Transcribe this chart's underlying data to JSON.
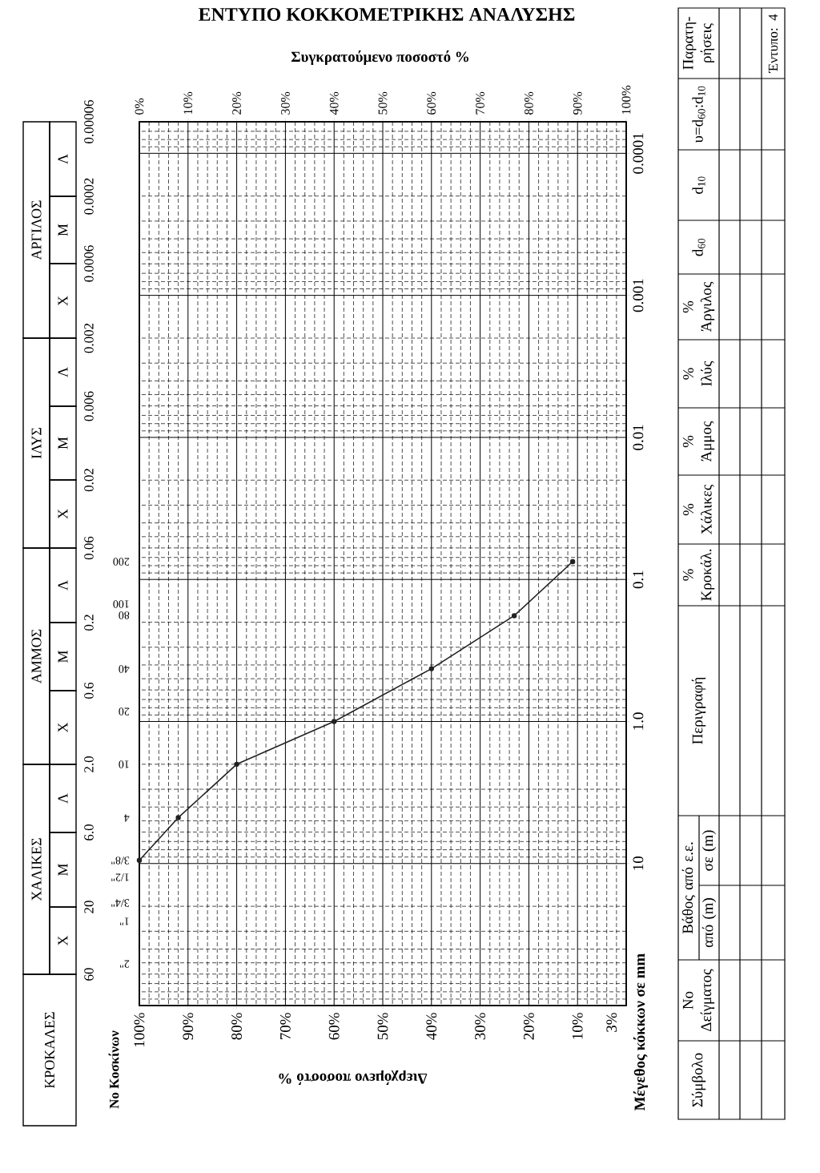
{
  "chart_data": [
    {
      "type": "line",
      "title": "ΕΝΤΥΠΟ ΚΟΚΚΟΜΕΤΡΙΚΗΣ ΑΝΑΛΥΣΗΣ",
      "xlabel": "Διερχόμενο ποσοστό %",
      "x2label": "Συγκρατούμενο ποσοστό %",
      "ylabel": "Μέγεθος κόκκων σε mm",
      "x": [
        100,
        92,
        80,
        60,
        40,
        23,
        11
      ],
      "values": [
        9.5,
        4.75,
        2,
        1,
        0.425,
        0.18,
        0.075
      ],
      "color": "#222222",
      "marker": "circle",
      "xlim": [
        100,
        0
      ],
      "xticks": [
        {
          "value": 100,
          "label": "100%"
        },
        {
          "value": 90,
          "label": "90%"
        },
        {
          "value": 80,
          "label": "80%"
        },
        {
          "value": 70,
          "label": "70%"
        },
        {
          "value": 60,
          "label": "60%"
        },
        {
          "value": 50,
          "label": "50%"
        },
        {
          "value": 40,
          "label": "40%"
        },
        {
          "value": 30,
          "label": "30%"
        },
        {
          "value": 20,
          "label": "20%"
        },
        {
          "value": 10,
          "label": "10%"
        },
        {
          "value": 3,
          "label": "3%"
        }
      ],
      "x2lim": [
        0,
        100
      ],
      "x2ticks": [
        {
          "value": 0,
          "label": "0%"
        },
        {
          "value": 10,
          "label": "10%"
        },
        {
          "value": 20,
          "label": "20%"
        },
        {
          "value": 30,
          "label": "30%"
        },
        {
          "value": 40,
          "label": "40%"
        },
        {
          "value": 50,
          "label": "50%"
        },
        {
          "value": 60,
          "label": "60%"
        },
        {
          "value": 70,
          "label": "70%"
        },
        {
          "value": 80,
          "label": "80%"
        },
        {
          "value": 90,
          "label": "90%"
        },
        {
          "value": 100,
          "label": "100%"
        }
      ],
      "ylim": [
        100,
        6e-05
      ],
      "yticks": [
        0.0001,
        0.001,
        0.01,
        0.1,
        {
          "value": 1,
          "label": "1.0"
        },
        10
      ],
      "log": "y",
      "grid": true,
      "annotations": [
        "No Κοσκίνων",
        "200",
        "100",
        "80",
        "40",
        "20",
        "10",
        "4",
        "3/8\"",
        "1/2\"",
        "3/4\"",
        "1\"",
        "2\""
      ]
    },
    {
      "type": "other",
      "annotations": [
        "ΑΡΓΙΛΟΣ",
        "Λ",
        "Μ",
        "Χ",
        "ΙΛΥΣ",
        "Λ",
        "Μ",
        "Χ",
        "ΑΜΜΟΣ",
        "Λ",
        "Μ",
        "Χ",
        "ΧΑΛΙΚΕΣ",
        "Λ",
        "Μ",
        "Χ",
        "ΚΡΟΚΑΛΕΣ",
        "0.00006",
        "0.0002",
        "0.0006",
        "0.002",
        "0.006",
        "0.02",
        "0.06",
        "0.2",
        "0.6",
        "2.0",
        "6.0",
        "20",
        "60"
      ]
    },
    {
      "type": "other",
      "annotations": [
        "Σύμβολο",
        "No Δείγματος",
        "Βάθος από ε.ε.",
        "από (m)",
        "σε (m)",
        "Περιγραφή",
        "% Κροκάλ.",
        "% Χάλικες",
        "% Άμμος",
        "% Ιλύς",
        "% Άργιλος",
        "d$_{60}$",
        "d$_{10}$",
        "υ=d$_{60}$:d$_{10}$",
        "Παρατη-ρήσεις",
        "Έντυπο: 4"
      ]
    }
  ]
}
